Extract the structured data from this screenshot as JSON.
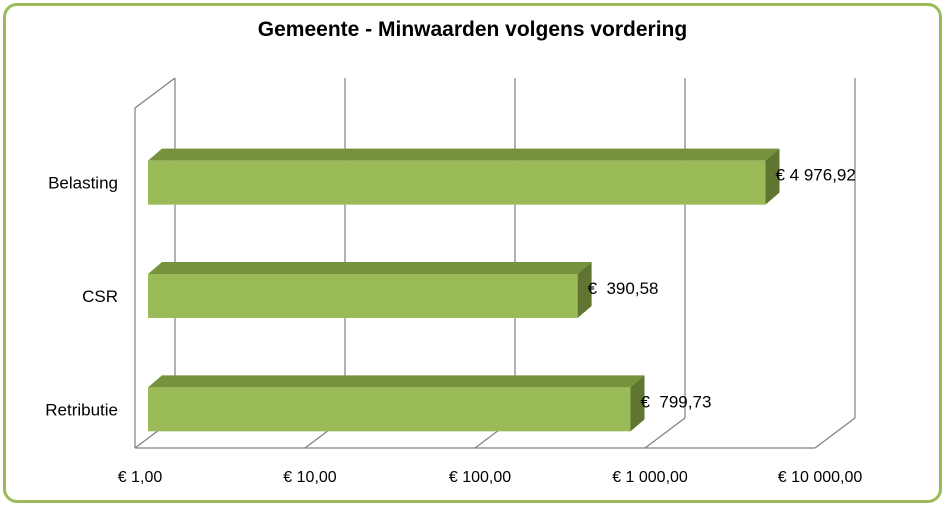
{
  "chart_data": {
    "type": "bar",
    "orientation": "horizontal",
    "title": "Gemeente - Minwaarden volgens vordering",
    "categories": [
      "Belasting",
      "CSR",
      "Retributie"
    ],
    "values": [
      4976.92,
      390.58,
      799.73
    ],
    "data_labels": [
      "€ 4 976,92",
      "€  390,58",
      "€  799,73"
    ],
    "x_scale": "log",
    "xlim": [
      1,
      10000
    ],
    "x_ticks": [
      1,
      10,
      100,
      1000,
      10000
    ],
    "x_tick_labels": [
      "€  1,00",
      "€  10,00",
      "€  100,00",
      "€ 1 000,00",
      "€ 10 000,00"
    ],
    "grid": true,
    "legend": "none",
    "colors": {
      "bar_front": "#9bbb59",
      "bar_top": "#76923c",
      "bar_side": "#5f7530",
      "grid": "#808080",
      "frame": "#9bbb59"
    }
  }
}
